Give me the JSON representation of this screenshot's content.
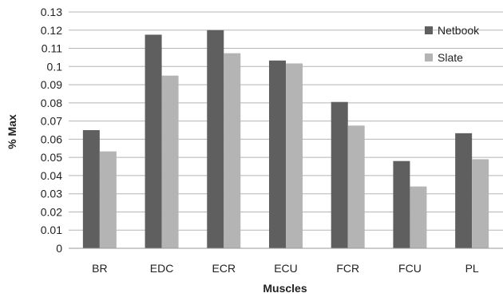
{
  "chart_data": {
    "type": "bar",
    "title": "",
    "xlabel": "Muscles",
    "ylabel": "% Max",
    "categories": [
      "BR",
      "EDC",
      "ECR",
      "ECU",
      "FCR",
      "FCU",
      "PL"
    ],
    "series": [
      {
        "name": "Netbook",
        "color": "#5f5f5f",
        "values": [
          0.065,
          0.1175,
          0.12,
          0.1033,
          0.0805,
          0.048,
          0.0633
        ]
      },
      {
        "name": "Slate",
        "color": "#b4b4b4",
        "values": [
          0.0533,
          0.095,
          0.1073,
          0.1017,
          0.0675,
          0.034,
          0.049
        ]
      }
    ],
    "ylim": [
      0,
      0.13
    ],
    "yticks": [
      "0",
      "0.01",
      "0.02",
      "0.03",
      "0.04",
      "0.05",
      "0.06",
      "0.07",
      "0.08",
      "0.09",
      "0.1",
      "0.11",
      "0.12",
      "0.13"
    ],
    "grid": true,
    "legend": "top-right"
  }
}
